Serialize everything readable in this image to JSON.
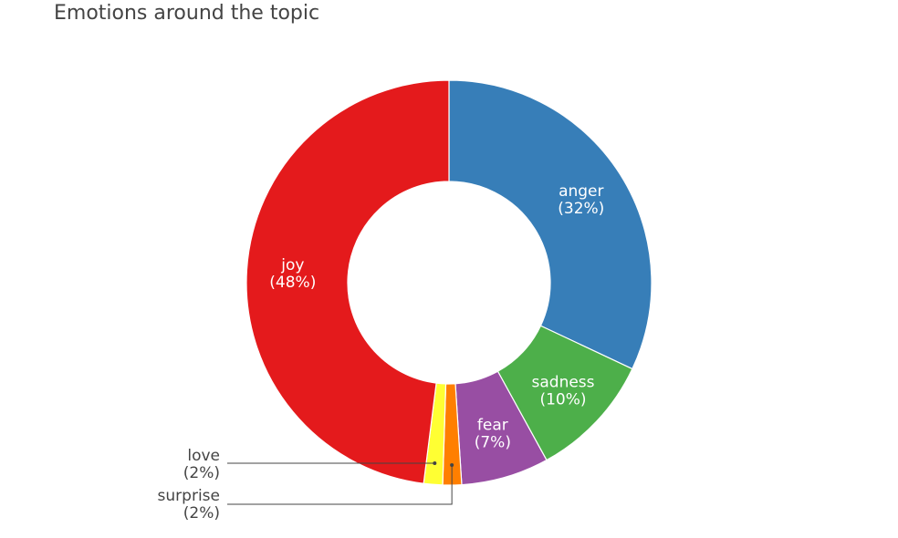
{
  "chart_data": {
    "type": "pie",
    "title": "Emotions around the topic",
    "hole": true,
    "slices": [
      {
        "label": "anger",
        "pct_label": "(32%)",
        "value": 32,
        "color": "#377eb8",
        "label_position": "inside"
      },
      {
        "label": "sadness",
        "pct_label": "(10%)",
        "value": 10,
        "color": "#4daf4a",
        "label_position": "inside"
      },
      {
        "label": "fear",
        "pct_label": "(7%)",
        "value": 7,
        "color": "#984ea3",
        "label_position": "inside"
      },
      {
        "label": "surprise",
        "pct_label": "(2%)",
        "value": 1.5,
        "color": "#ff7f00",
        "label_position": "outside"
      },
      {
        "label": "love",
        "pct_label": "(2%)",
        "value": 1.5,
        "color": "#ffff33",
        "label_position": "outside"
      },
      {
        "label": "joy",
        "pct_label": "(48%)",
        "value": 48,
        "color": "#e41a1c",
        "label_position": "inside"
      }
    ]
  }
}
